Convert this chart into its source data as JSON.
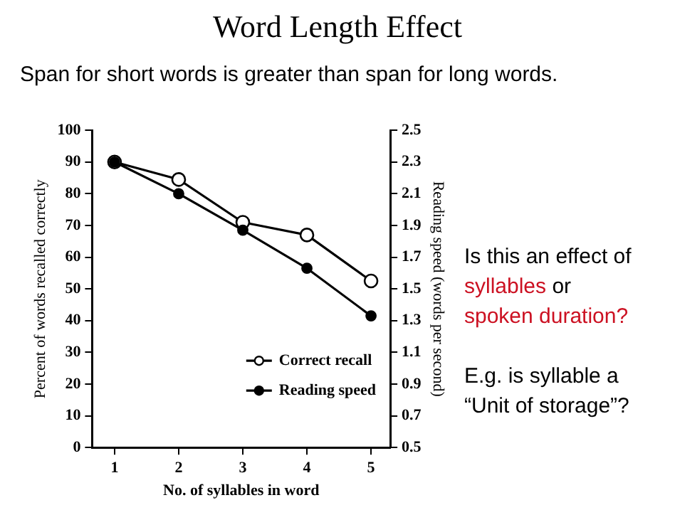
{
  "chart_data": {
    "type": "line",
    "title": "Word Length Effect",
    "subtitle": "Span for short words is greater than span for long words.",
    "xlabel": "No. of syllables in word",
    "ylabel": "Percent of words recalled correctly",
    "y2label": "Reading speed (words per second)",
    "x": [
      1,
      2,
      3,
      4,
      5
    ],
    "series": [
      {
        "name": "Correct recall",
        "color": "#000000",
        "values": [
          90,
          84.5,
          71,
          67,
          52.5
        ]
      },
      {
        "name": "Reading speed",
        "color": "#000000",
        "axis": "y2",
        "values": [
          2.3,
          2.1,
          1.87,
          1.63,
          1.33
        ]
      }
    ],
    "xlim": [
      0.65,
      5.3
    ],
    "xticks": [
      1,
      2,
      3,
      4,
      5
    ],
    "ylim": [
      0,
      100
    ],
    "yticks": [
      0,
      10,
      20,
      30,
      40,
      50,
      60,
      70,
      80,
      90,
      100
    ],
    "y2lim": [
      0.5,
      2.5
    ],
    "y2ticks": [
      {
        "value": 0.5,
        "label": "0.5"
      },
      {
        "value": 0.7,
        "label": "0.7"
      },
      {
        "value": 0.9,
        "label": "0.9"
      },
      {
        "value": 1.1,
        "label": "1.1"
      },
      {
        "value": 1.3,
        "label": "1.3"
      },
      {
        "value": 1.5,
        "label": "1.5"
      },
      {
        "value": 1.7,
        "label": "1.7"
      },
      {
        "value": 1.9,
        "label": "1.9"
      },
      {
        "value": 2.1,
        "label": "2.1"
      },
      {
        "value": 2.3,
        "label": "2.3"
      },
      {
        "value": 2.5,
        "label": "2.5"
      }
    ],
    "grid": false,
    "legend": "bottom right",
    "marker": "circle",
    "line_style": "solid",
    "annotations": [
      "Is this an effect of",
      "syllables",
      "or",
      "spoken duration?",
      "E.g. is syllable a",
      "“Unit of storage”?"
    ]
  }
}
